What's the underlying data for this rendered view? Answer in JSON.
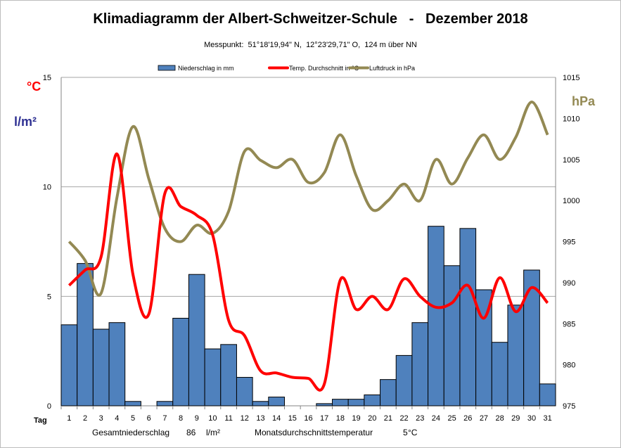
{
  "chart_data": {
    "type": "bar+line",
    "title": "Klimadiagramm der Albert-Schweitzer-Schule   -   Dezember 2018",
    "subtitle": "Messpunkt:  51°18'19,94\" N,  12°23'29,71\" O,  124 m über NN",
    "xlabel": "Tag",
    "categories": [
      "1",
      "2",
      "3",
      "4",
      "5",
      "6",
      "7",
      "8",
      "9",
      "10",
      "11",
      "12",
      "13",
      "14",
      "15",
      "16",
      "17",
      "18",
      "19",
      "20",
      "21",
      "22",
      "23",
      "24",
      "25",
      "26",
      "27",
      "28",
      "29",
      "30",
      "31"
    ],
    "left_axis": {
      "labels": [
        "°C",
        "l/m²"
      ],
      "ylim": [
        0,
        15
      ],
      "ticks": [
        "0",
        "5",
        "10",
        "15"
      ]
    },
    "right_axis": {
      "label": "hPa",
      "ylim": [
        975,
        1015
      ],
      "ticks": [
        "975",
        "980",
        "985",
        "990",
        "995",
        "1000",
        "1005",
        "1010",
        "1015"
      ]
    },
    "grid": true,
    "legend": "top-center",
    "series": [
      {
        "name": "Niederschlag in mm",
        "type": "bar",
        "axis": "left",
        "color": "#4f81bd",
        "values": [
          3.7,
          6.5,
          3.5,
          3.8,
          0.2,
          0,
          0.2,
          4.0,
          6.0,
          2.6,
          2.8,
          1.3,
          0.2,
          0.4,
          0,
          0,
          0.1,
          0.3,
          0.3,
          0.5,
          1.2,
          2.3,
          3.8,
          8.2,
          6.4,
          8.1,
          5.3,
          2.9,
          4.6,
          6.2,
          1.0
        ]
      },
      {
        "name": "Temp. Durchschnitt in °C",
        "type": "line",
        "axis": "left",
        "color": "#ff0000",
        "values": [
          5.5,
          6.2,
          6.8,
          11.5,
          6.0,
          4.2,
          9.7,
          9.1,
          8.7,
          7.8,
          3.9,
          3.2,
          1.6,
          1.5,
          1.3,
          1.25,
          1.0,
          5.75,
          4.4,
          5.0,
          4.4,
          5.8,
          5.0,
          4.5,
          4.7,
          5.5,
          4.0,
          5.85,
          4.3,
          5.4,
          4.7
        ]
      },
      {
        "name": "Luftdruck in hPa",
        "type": "line",
        "axis": "right",
        "color": "#938953",
        "values": [
          995,
          992.7,
          988.7,
          1000.4,
          1009,
          1002.6,
          996.6,
          995,
          997,
          996,
          998.7,
          1006,
          1004.9,
          1004,
          1005,
          1002.2,
          1003.4,
          1008,
          1003,
          998.9,
          1000,
          1002,
          1000,
          1005,
          1002,
          1005.2,
          1008,
          1005,
          1007.7,
          1012,
          1008
        ]
      }
    ],
    "footer": {
      "total_label": "Gesamtniederschlag",
      "total_value": "86",
      "total_unit": "l/m²",
      "avg_label": "Monatsdurchschnittstemperatur",
      "avg_value": "5",
      "avg_unit": "°C"
    }
  }
}
